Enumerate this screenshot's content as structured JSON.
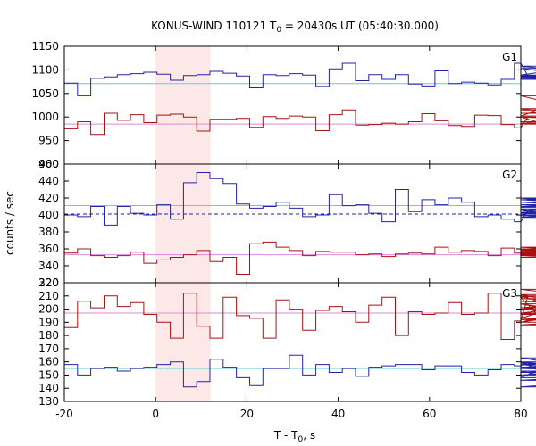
{
  "chart_data": {
    "type": "line",
    "title": {
      "pre": "KONUS-WIND 110121 T",
      "sub": "0",
      "post": " = 20430s UT (05:40:30.000)"
    },
    "xlabel": {
      "pre": "T - T",
      "sub": "0",
      "post": ", s"
    },
    "ylabel": "counts / sec",
    "xlim": [
      -20,
      80
    ],
    "x_ticks": [
      -20,
      0,
      20,
      40,
      60,
      80
    ],
    "x_step": 2.9,
    "x_start": -20,
    "shaded_interval": [
      0,
      12
    ],
    "shaded_color": "#fde8e8",
    "colors": {
      "blue": "#2222aa",
      "red": "#aa1111",
      "cyan": "#66cccc",
      "pink": "#dd88dd"
    },
    "panels": [
      {
        "label": "G1",
        "ylim": [
          900,
          1150
        ],
        "yticks": [
          900,
          950,
          1000,
          1050,
          1100,
          1150
        ],
        "series": [
          {
            "color": "blue",
            "values": [
              1072,
              1045,
              1082,
              1085,
              1090,
              1092,
              1095,
              1091,
              1078,
              1088,
              1090,
              1097,
              1093,
              1087,
              1062,
              1090,
              1088,
              1092,
              1089,
              1065,
              1102,
              1114,
              1077,
              1090,
              1080,
              1090,
              1070,
              1066,
              1098,
              1071,
              1074,
              1072,
              1068,
              1080,
              1114,
              1088,
              1080,
              1089,
              1103,
              1087,
              1083,
              1108,
              1086,
              1084,
              1081,
              1080,
              1086,
              1082,
              1080,
              1083,
              1080,
              1084,
              1080,
              1082,
              1080,
              1082,
              1080,
              1082,
              1080,
              1082
            ]
          },
          {
            "color": "red",
            "values": [
              975,
              990,
              963,
              1008,
              993,
              1005,
              988,
              1004,
              1006,
              1000,
              970,
              995,
              995,
              997,
              978,
              1001,
              997,
              1002,
              1000,
              971,
              1005,
              1015,
              983,
              984,
              987,
              985,
              990,
              1007,
              992,
              982,
              980,
              1004,
              1003,
              984,
              977,
              1000,
              987,
              985,
              1002,
              1045,
              1008,
              1015,
              1018,
              990,
              985,
              1000,
              987,
              985,
              990,
              987,
              985,
              990,
              987,
              985,
              990,
              987,
              985,
              990,
              987,
              985
            ]
          }
        ],
        "refs": [
          {
            "color": "cyan",
            "value": 1071,
            "style": "solid"
          },
          {
            "color": "pink",
            "value": 985,
            "style": "solid"
          }
        ]
      },
      {
        "label": "G2",
        "ylim": [
          320,
          460
        ],
        "yticks": [
          320,
          340,
          360,
          380,
          400,
          420,
          440,
          460
        ],
        "series": [
          {
            "color": "blue",
            "values": [
              400,
              398,
              410,
              388,
              410,
              402,
              400,
              412,
              395,
              438,
              450,
              443,
              437,
              413,
              408,
              410,
              415,
              408,
              398,
              400,
              424,
              411,
              412,
              402,
              392,
              430,
              404,
              418,
              412,
              420,
              415,
              398,
              400,
              395,
              392,
              405,
              407,
              400,
              399,
              400,
              420,
              409,
              418,
              410,
              412,
              402,
              397,
              412,
              415,
              403,
              420,
              405,
              410,
              402,
              400,
              405,
              410,
              402,
              400,
              405
            ]
          },
          {
            "color": "red",
            "values": [
              355,
              360,
              352,
              350,
              352,
              356,
              343,
              347,
              350,
              353,
              358,
              345,
              350,
              330,
              366,
              368,
              362,
              358,
              352,
              357,
              356,
              356,
              353,
              354,
              351,
              354,
              355,
              354,
              362,
              356,
              358,
              357,
              352,
              361,
              355,
              353,
              356,
              355,
              359,
              355,
              353,
              354,
              350,
              356,
              362,
              352,
              357,
              355,
              360,
              354,
              353,
              356,
              358,
              355,
              353,
              356,
              358,
              355,
              353,
              356
            ]
          }
        ],
        "refs": [
          {
            "color": "cyan",
            "value": 411,
            "style": "solid"
          },
          {
            "color": "blue",
            "value": 401,
            "style": "dashed"
          },
          {
            "color": "pink",
            "value": 353,
            "style": "solid"
          }
        ]
      },
      {
        "label": "G3",
        "ylim": [
          130,
          220
        ],
        "yticks": [
          130,
          140,
          150,
          160,
          170,
          180,
          190,
          200,
          210,
          220
        ],
        "series": [
          {
            "color": "blue",
            "values": [
              158,
              150,
              155,
              156,
              153,
              155,
              156,
              158,
              160,
              141,
              145,
              162,
              156,
              148,
              142,
              155,
              155,
              165,
              150,
              158,
              152,
              155,
              149,
              156,
              157,
              158,
              158,
              154,
              157,
              157,
              152,
              150,
              154,
              158,
              157,
              160,
              153,
              148,
              163,
              156,
              158,
              152,
              152,
              155,
              155,
              156,
              141,
              150,
              158,
              160,
              146,
              156,
              150,
              159,
              152,
              159,
              155,
              150,
              156,
              159
            ]
          },
          {
            "color": "red",
            "values": [
              186,
              206,
              201,
              210,
              202,
              205,
              196,
              190,
              178,
              212,
              187,
              178,
              209,
              195,
              193,
              178,
              207,
              200,
              184,
              199,
              202,
              198,
              190,
              203,
              209,
              180,
              198,
              196,
              197,
              205,
              196,
              197,
              212,
              177,
              191,
              209,
              193,
              201,
              204,
              196,
              210,
              190,
              210,
              204,
              190,
              206,
              200,
              211,
              188,
              197,
              215,
              196,
              196,
              210,
              192,
              201,
              208,
              197,
              201,
              208
            ]
          }
        ],
        "refs": [
          {
            "color": "cyan",
            "value": 155,
            "style": "solid"
          },
          {
            "color": "pink",
            "value": 197,
            "style": "solid"
          }
        ]
      }
    ]
  }
}
